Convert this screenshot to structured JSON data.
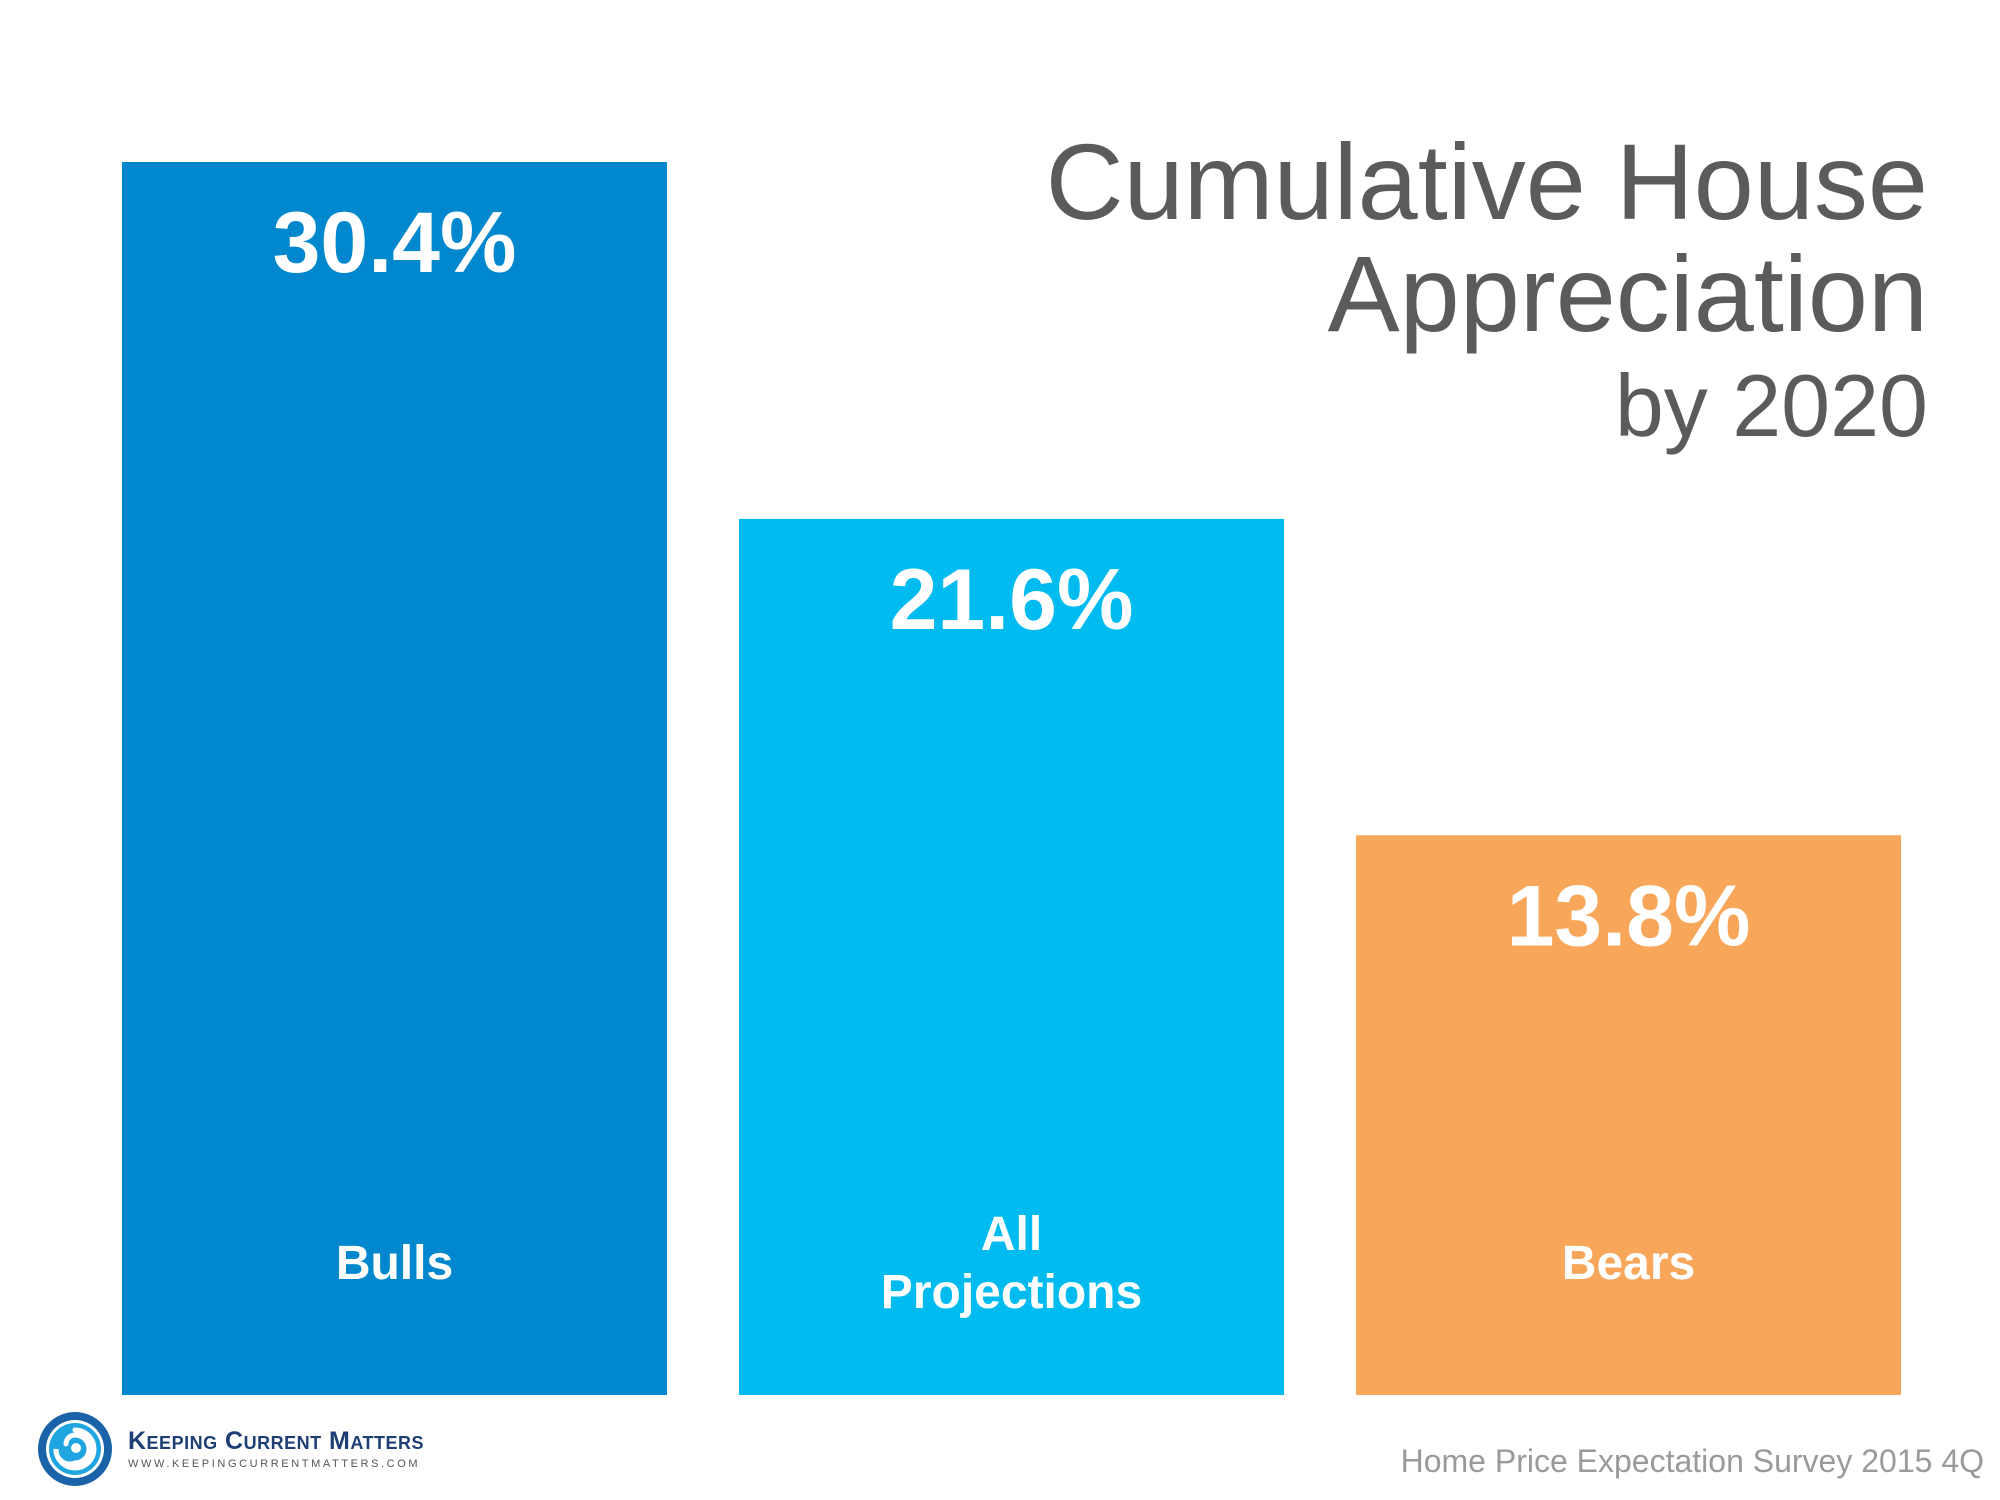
{
  "title": {
    "line1": "Cumulative House",
    "line2": "Appreciation",
    "line3": "by 2020"
  },
  "source": "Home Price Expectation Survey 2015 4Q",
  "logo": {
    "name": "Keeping Current Matters",
    "url": "WWW.KEEPINGCURRENTMATTERS.COM"
  },
  "colors": {
    "bulls": "#0087cd",
    "all": "#00bbf0",
    "bears": "#f8a75a",
    "title": "#5b5b5b",
    "source": "#9a9a9a"
  },
  "chart_data": {
    "type": "bar",
    "categories": [
      "Bulls",
      "All\nProjections",
      "Bears"
    ],
    "values": [
      30.4,
      21.6,
      13.8
    ],
    "value_labels": [
      "30.4%",
      "21.6%",
      "13.8%"
    ],
    "title": "Cumulative House Appreciation by 2020",
    "xlabel": "",
    "ylabel": "",
    "ylim": [
      0,
      32
    ],
    "grid": false
  }
}
